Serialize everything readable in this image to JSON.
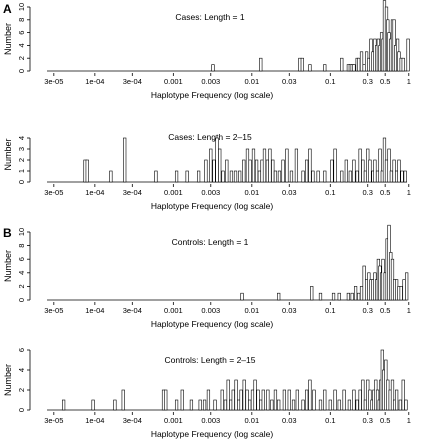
{
  "panel_labels": [
    "A",
    "B"
  ],
  "chart_data": [
    {
      "type": "bar",
      "title": "Cases:    Length = 1",
      "xlabel": "Haplotype Frequency (log scale)",
      "ylabel": "Number",
      "x_scale": "log",
      "xlim": [
        2e-05,
        1.2
      ],
      "ylim": [
        0,
        10
      ],
      "x_ticks": [
        "3e-05",
        "1e-04",
        "3e-04",
        "0.001",
        "0.003",
        "0.01",
        "0.03",
        "0.1",
        "0.3",
        "0.5",
        "1"
      ],
      "y_ticks": [
        "0",
        "2",
        "4",
        "6",
        "8",
        "10"
      ],
      "bars": [
        {
          "x": 0.0032,
          "y": 1
        },
        {
          "x": 0.013,
          "y": 2
        },
        {
          "x": 0.041,
          "y": 2
        },
        {
          "x": 0.044,
          "y": 2
        },
        {
          "x": 0.055,
          "y": 1
        },
        {
          "x": 0.085,
          "y": 1
        },
        {
          "x": 0.14,
          "y": 2
        },
        {
          "x": 0.17,
          "y": 1
        },
        {
          "x": 0.18,
          "y": 1
        },
        {
          "x": 0.19,
          "y": 1
        },
        {
          "x": 0.2,
          "y": 1
        },
        {
          "x": 0.22,
          "y": 2
        },
        {
          "x": 0.23,
          "y": 2
        },
        {
          "x": 0.25,
          "y": 3
        },
        {
          "x": 0.27,
          "y": 1
        },
        {
          "x": 0.29,
          "y": 3
        },
        {
          "x": 0.31,
          "y": 2
        },
        {
          "x": 0.33,
          "y": 5
        },
        {
          "x": 0.35,
          "y": 3
        },
        {
          "x": 0.37,
          "y": 5
        },
        {
          "x": 0.39,
          "y": 4
        },
        {
          "x": 0.41,
          "y": 5
        },
        {
          "x": 0.43,
          "y": 4
        },
        {
          "x": 0.45,
          "y": 6
        },
        {
          "x": 0.47,
          "y": 5
        },
        {
          "x": 0.49,
          "y": 11
        },
        {
          "x": 0.52,
          "y": 10
        },
        {
          "x": 0.54,
          "y": 8
        },
        {
          "x": 0.56,
          "y": 6
        },
        {
          "x": 0.59,
          "y": 5
        },
        {
          "x": 0.62,
          "y": 8
        },
        {
          "x": 0.65,
          "y": 8
        },
        {
          "x": 0.68,
          "y": 4
        },
        {
          "x": 0.72,
          "y": 5
        },
        {
          "x": 0.75,
          "y": 3
        },
        {
          "x": 0.8,
          "y": 2
        },
        {
          "x": 0.85,
          "y": 2
        },
        {
          "x": 0.98,
          "y": 5
        }
      ]
    },
    {
      "type": "bar",
      "title": "Cases:    Length = 2–15",
      "xlabel": "Haplotype Frequency (log scale)",
      "ylabel": "Number",
      "x_scale": "log",
      "xlim": [
        2e-05,
        1.2
      ],
      "ylim": [
        0,
        5
      ],
      "x_ticks": [
        "3e-05",
        "1e-04",
        "3e-04",
        "0.001",
        "0.003",
        "0.01",
        "0.03",
        "0.1",
        "0.3",
        "0.5",
        "1"
      ],
      "y_ticks": [
        "0",
        "1",
        "2",
        "3",
        "4"
      ],
      "bars": [
        {
          "x": 7.5e-05,
          "y": 2
        },
        {
          "x": 8e-05,
          "y": 2
        },
        {
          "x": 0.00016,
          "y": 1
        },
        {
          "x": 0.00024,
          "y": 4
        },
        {
          "x": 0.0006,
          "y": 1
        },
        {
          "x": 0.0011,
          "y": 1
        },
        {
          "x": 0.0015,
          "y": 1
        },
        {
          "x": 0.0021,
          "y": 1
        },
        {
          "x": 0.0026,
          "y": 2
        },
        {
          "x": 0.003,
          "y": 3
        },
        {
          "x": 0.0033,
          "y": 2
        },
        {
          "x": 0.0036,
          "y": 4
        },
        {
          "x": 0.0039,
          "y": 3
        },
        {
          "x": 0.0043,
          "y": 1
        },
        {
          "x": 0.0048,
          "y": 2
        },
        {
          "x": 0.0055,
          "y": 1
        },
        {
          "x": 0.0062,
          "y": 1
        },
        {
          "x": 0.007,
          "y": 1
        },
        {
          "x": 0.0079,
          "y": 2
        },
        {
          "x": 0.0088,
          "y": 3
        },
        {
          "x": 0.0095,
          "y": 2
        },
        {
          "x": 0.0105,
          "y": 3
        },
        {
          "x": 0.0115,
          "y": 2
        },
        {
          "x": 0.0125,
          "y": 1
        },
        {
          "x": 0.0135,
          "y": 2
        },
        {
          "x": 0.0145,
          "y": 3
        },
        {
          "x": 0.0158,
          "y": 2
        },
        {
          "x": 0.017,
          "y": 3
        },
        {
          "x": 0.0185,
          "y": 2
        },
        {
          "x": 0.02,
          "y": 1
        },
        {
          "x": 0.0225,
          "y": 1
        },
        {
          "x": 0.025,
          "y": 2
        },
        {
          "x": 0.028,
          "y": 3
        },
        {
          "x": 0.032,
          "y": 1
        },
        {
          "x": 0.037,
          "y": 3
        },
        {
          "x": 0.045,
          "y": 1
        },
        {
          "x": 0.05,
          "y": 2
        },
        {
          "x": 0.055,
          "y": 3
        },
        {
          "x": 0.06,
          "y": 1
        },
        {
          "x": 0.07,
          "y": 1
        },
        {
          "x": 0.085,
          "y": 1
        },
        {
          "x": 0.105,
          "y": 2
        },
        {
          "x": 0.115,
          "y": 3
        },
        {
          "x": 0.14,
          "y": 1
        },
        {
          "x": 0.16,
          "y": 2
        },
        {
          "x": 0.18,
          "y": 1
        },
        {
          "x": 0.2,
          "y": 2
        },
        {
          "x": 0.22,
          "y": 1
        },
        {
          "x": 0.24,
          "y": 3
        },
        {
          "x": 0.26,
          "y": 2
        },
        {
          "x": 0.28,
          "y": 1
        },
        {
          "x": 0.3,
          "y": 3
        },
        {
          "x": 0.32,
          "y": 2
        },
        {
          "x": 0.35,
          "y": 1
        },
        {
          "x": 0.37,
          "y": 2
        },
        {
          "x": 0.4,
          "y": 1
        },
        {
          "x": 0.43,
          "y": 3
        },
        {
          "x": 0.46,
          "y": 1
        },
        {
          "x": 0.49,
          "y": 4
        },
        {
          "x": 0.52,
          "y": 2
        },
        {
          "x": 0.56,
          "y": 3
        },
        {
          "x": 0.6,
          "y": 1
        },
        {
          "x": 0.65,
          "y": 2
        },
        {
          "x": 0.7,
          "y": 1
        },
        {
          "x": 0.75,
          "y": 2
        },
        {
          "x": 0.82,
          "y": 1
        },
        {
          "x": 0.9,
          "y": 1
        }
      ]
    },
    {
      "type": "bar",
      "title": "Controls:    Length = 1",
      "xlabel": "Haplotype Frequency (log scale)",
      "ylabel": "Number",
      "x_scale": "log",
      "xlim": [
        2e-05,
        1.2
      ],
      "ylim": [
        0,
        10
      ],
      "x_ticks": [
        "3e-05",
        "1e-04",
        "3e-04",
        "0.001",
        "0.003",
        "0.01",
        "0.03",
        "0.1",
        "0.3",
        "0.5",
        "1"
      ],
      "y_ticks": [
        "0",
        "2",
        "4",
        "6",
        "8",
        "10"
      ],
      "bars": [
        {
          "x": 0.0075,
          "y": 1
        },
        {
          "x": 0.022,
          "y": 1
        },
        {
          "x": 0.058,
          "y": 2
        },
        {
          "x": 0.075,
          "y": 1
        },
        {
          "x": 0.11,
          "y": 1
        },
        {
          "x": 0.13,
          "y": 1
        },
        {
          "x": 0.17,
          "y": 1
        },
        {
          "x": 0.19,
          "y": 1
        },
        {
          "x": 0.21,
          "y": 2
        },
        {
          "x": 0.23,
          "y": 1
        },
        {
          "x": 0.25,
          "y": 2
        },
        {
          "x": 0.27,
          "y": 5
        },
        {
          "x": 0.29,
          "y": 3
        },
        {
          "x": 0.31,
          "y": 4
        },
        {
          "x": 0.33,
          "y": 3
        },
        {
          "x": 0.35,
          "y": 3
        },
        {
          "x": 0.37,
          "y": 4
        },
        {
          "x": 0.39,
          "y": 3
        },
        {
          "x": 0.41,
          "y": 6
        },
        {
          "x": 0.43,
          "y": 5
        },
        {
          "x": 0.45,
          "y": 4
        },
        {
          "x": 0.47,
          "y": 6
        },
        {
          "x": 0.5,
          "y": 4
        },
        {
          "x": 0.53,
          "y": 9
        },
        {
          "x": 0.56,
          "y": 11
        },
        {
          "x": 0.59,
          "y": 7
        },
        {
          "x": 0.62,
          "y": 6
        },
        {
          "x": 0.66,
          "y": 3
        },
        {
          "x": 0.7,
          "y": 3
        },
        {
          "x": 0.75,
          "y": 2
        },
        {
          "x": 0.8,
          "y": 2
        },
        {
          "x": 0.87,
          "y": 3
        },
        {
          "x": 0.94,
          "y": 4
        }
      ]
    },
    {
      "type": "bar",
      "title": "Controls:    Length = 2–15",
      "xlabel": "Haplotype Frequency (log scale)",
      "ylabel": "Number",
      "x_scale": "log",
      "xlim": [
        2e-05,
        1.2
      ],
      "ylim": [
        0,
        6
      ],
      "x_ticks": [
        "3e-05",
        "1e-04",
        "3e-04",
        "0.001",
        "0.003",
        "0.01",
        "0.03",
        "0.1",
        "0.3",
        "0.5",
        "1"
      ],
      "y_ticks": [
        "0",
        "2",
        "4",
        "6"
      ],
      "bars": [
        {
          "x": 4e-05,
          "y": 1
        },
        {
          "x": 9.5e-05,
          "y": 1
        },
        {
          "x": 0.00018,
          "y": 1
        },
        {
          "x": 0.00023,
          "y": 2
        },
        {
          "x": 0.00075,
          "y": 2
        },
        {
          "x": 0.0008,
          "y": 2
        },
        {
          "x": 0.0011,
          "y": 1
        },
        {
          "x": 0.0013,
          "y": 2
        },
        {
          "x": 0.0017,
          "y": 1
        },
        {
          "x": 0.0022,
          "y": 1
        },
        {
          "x": 0.0025,
          "y": 1
        },
        {
          "x": 0.0028,
          "y": 2
        },
        {
          "x": 0.0034,
          "y": 1
        },
        {
          "x": 0.0042,
          "y": 2
        },
        {
          "x": 0.0046,
          "y": 1
        },
        {
          "x": 0.005,
          "y": 3
        },
        {
          "x": 0.0054,
          "y": 1
        },
        {
          "x": 0.0058,
          "y": 2
        },
        {
          "x": 0.0063,
          "y": 3
        },
        {
          "x": 0.0068,
          "y": 1
        },
        {
          "x": 0.0073,
          "y": 2
        },
        {
          "x": 0.008,
          "y": 3
        },
        {
          "x": 0.0087,
          "y": 2
        },
        {
          "x": 0.0094,
          "y": 1
        },
        {
          "x": 0.0102,
          "y": 2
        },
        {
          "x": 0.011,
          "y": 3
        },
        {
          "x": 0.012,
          "y": 2
        },
        {
          "x": 0.013,
          "y": 1
        },
        {
          "x": 0.014,
          "y": 2
        },
        {
          "x": 0.016,
          "y": 2
        },
        {
          "x": 0.018,
          "y": 1
        },
        {
          "x": 0.02,
          "y": 2
        },
        {
          "x": 0.022,
          "y": 1
        },
        {
          "x": 0.026,
          "y": 2
        },
        {
          "x": 0.03,
          "y": 2
        },
        {
          "x": 0.034,
          "y": 1
        },
        {
          "x": 0.038,
          "y": 2
        },
        {
          "x": 0.045,
          "y": 1
        },
        {
          "x": 0.05,
          "y": 2
        },
        {
          "x": 0.055,
          "y": 3
        },
        {
          "x": 0.062,
          "y": 2
        },
        {
          "x": 0.075,
          "y": 1
        },
        {
          "x": 0.085,
          "y": 2
        },
        {
          "x": 0.1,
          "y": 1
        },
        {
          "x": 0.115,
          "y": 2
        },
        {
          "x": 0.13,
          "y": 1
        },
        {
          "x": 0.15,
          "y": 2
        },
        {
          "x": 0.175,
          "y": 1
        },
        {
          "x": 0.2,
          "y": 2
        },
        {
          "x": 0.22,
          "y": 1
        },
        {
          "x": 0.24,
          "y": 2
        },
        {
          "x": 0.26,
          "y": 3
        },
        {
          "x": 0.28,
          "y": 1
        },
        {
          "x": 0.3,
          "y": 3
        },
        {
          "x": 0.32,
          "y": 2
        },
        {
          "x": 0.34,
          "y": 1
        },
        {
          "x": 0.36,
          "y": 2
        },
        {
          "x": 0.38,
          "y": 3
        },
        {
          "x": 0.4,
          "y": 2
        },
        {
          "x": 0.42,
          "y": 1
        },
        {
          "x": 0.44,
          "y": 3
        },
        {
          "x": 0.46,
          "y": 6
        },
        {
          "x": 0.48,
          "y": 4
        },
        {
          "x": 0.51,
          "y": 5
        },
        {
          "x": 0.54,
          "y": 3
        },
        {
          "x": 0.58,
          "y": 2
        },
        {
          "x": 0.62,
          "y": 3
        },
        {
          "x": 0.66,
          "y": 1
        },
        {
          "x": 0.7,
          "y": 2
        },
        {
          "x": 0.78,
          "y": 1
        },
        {
          "x": 0.85,
          "y": 3
        },
        {
          "x": 0.92,
          "y": 1
        }
      ]
    }
  ]
}
